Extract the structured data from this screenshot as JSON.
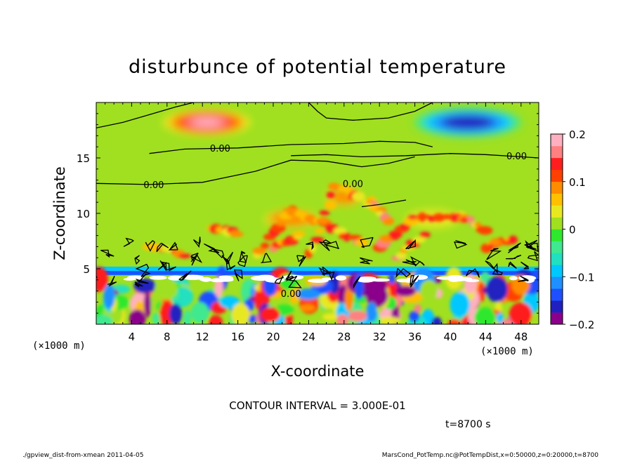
{
  "chart_data": {
    "type": "heatmap",
    "title": "disturbunce of potential temperature",
    "xlabel": "X-coordinate",
    "ylabel": "Z-coordinate",
    "x_unit_left": "(×1000 m)",
    "x_unit_right": "(×1000 m)",
    "xlim": [
      0,
      50
    ],
    "ylim": [
      0,
      20
    ],
    "xticks": [
      4,
      8,
      12,
      16,
      20,
      24,
      28,
      32,
      36,
      40,
      44,
      48
    ],
    "yticks": [
      5,
      10,
      15
    ],
    "colorbar": {
      "ticks": [
        0.2,
        0.1,
        0,
        -0.1,
        -0.2
      ],
      "tick_labels": [
        "0.2",
        "0.1",
        "0",
        "−0.1",
        "−0.2"
      ],
      "range": [
        -0.2,
        0.2
      ],
      "colors": [
        "#8b008b",
        "#2020c0",
        "#1e50ff",
        "#1e90ff",
        "#00c8ff",
        "#20e0c0",
        "#40e890",
        "#2ee82e",
        "#a0e020",
        "#e8e820",
        "#ffc000",
        "#ff8c00",
        "#ff4000",
        "#ff1e1e",
        "#ff8080",
        "#ffb0c0"
      ]
    },
    "contour_labels": [
      "0.00",
      "0.00",
      "0.00",
      "0.00",
      "0.00"
    ],
    "contour_interval": "CONTOUR INTERVAL = 3.000E-01",
    "time": "t=8700 s",
    "features": [
      {
        "type": "positive",
        "x": 12.5,
        "z": 18.2,
        "value": 0.18,
        "rx": 5,
        "rz": 1.2
      },
      {
        "type": "negative",
        "x": 42,
        "z": 18.2,
        "value": -0.17,
        "rx": 6,
        "rz": 1.3
      },
      {
        "type": "positive",
        "x": 28,
        "z": 11.5,
        "value": 0.1,
        "rx": 2,
        "rz": 0.8
      },
      {
        "type": "positive",
        "x": 22,
        "z": 9.5,
        "value": 0.08,
        "rx": 3,
        "rz": 0.8
      },
      {
        "type": "positive",
        "x": 38,
        "z": 9.5,
        "value": 0.07,
        "rx": 3,
        "rz": 0.8
      }
    ]
  },
  "footer": {
    "left": "./gpview_dist-from-xmean  2011-04-05",
    "right": "MarsCond_PotTemp.nc@PotTempDist,x=0:50000,z=0:20000,t=8700"
  }
}
